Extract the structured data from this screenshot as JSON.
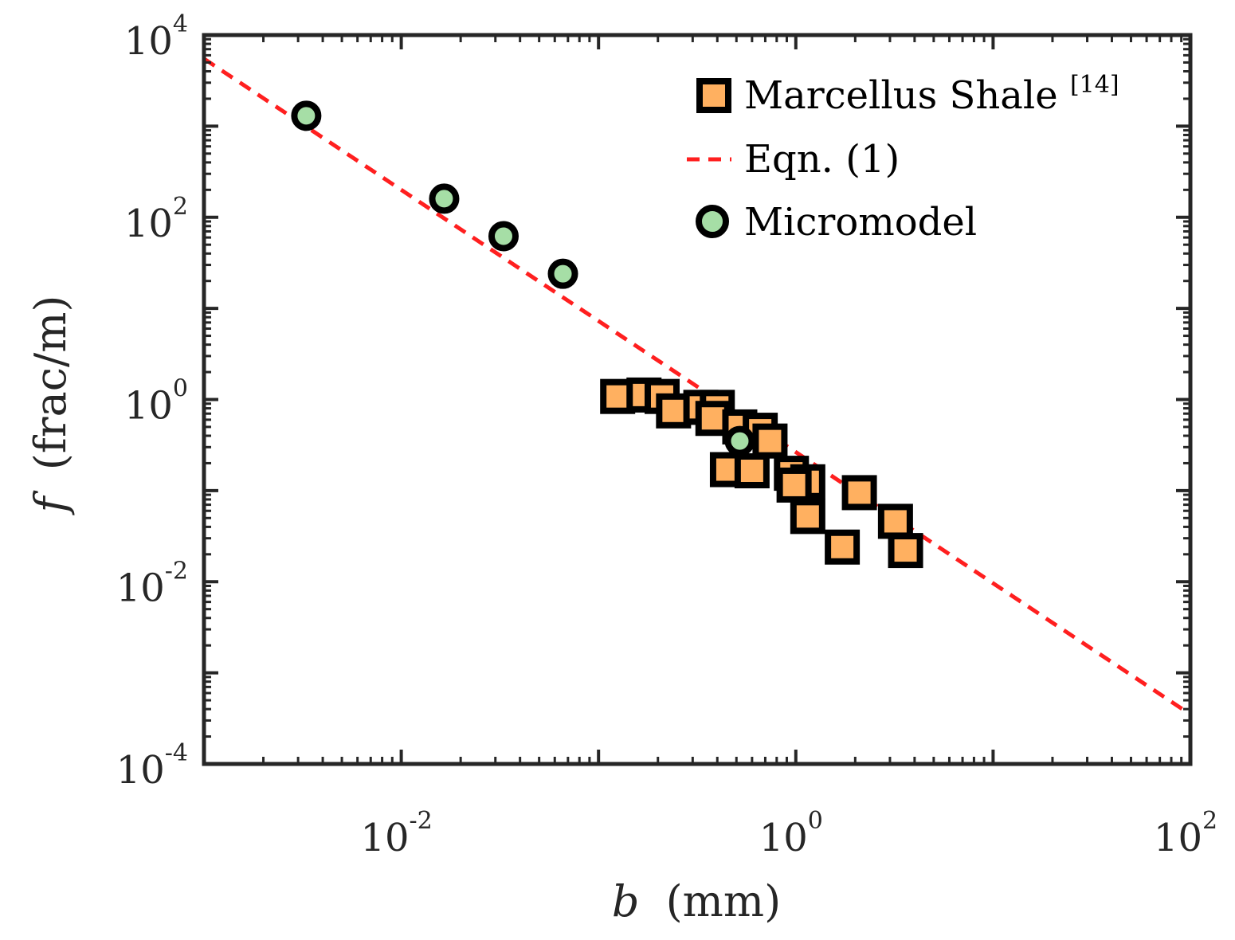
{
  "colors": {
    "frame": "#262626",
    "fit_line": "#ff1f1f",
    "marcellus_fill": "#ffb060",
    "micromodel_fill": "#a6dea6",
    "marker_edge": "#000000"
  },
  "chart_data": {
    "type": "scatter",
    "x_scale": "log",
    "y_scale": "log",
    "xlabel_var": "b",
    "xlabel_unit": "(mm)",
    "ylabel_var": "f",
    "ylabel_unit": "(frac/m)",
    "xlim": [
      0.001,
      100
    ],
    "ylim": [
      0.0001,
      10000
    ],
    "x_ticks": [
      {
        "base": "10",
        "exp": "-2",
        "value": 0.01
      },
      {
        "base": "10",
        "exp": "0",
        "value": 1
      },
      {
        "base": "10",
        "exp": "2",
        "value": 100
      }
    ],
    "y_ticks": [
      {
        "base": "10",
        "exp": "-4",
        "value": 0.0001
      },
      {
        "base": "10",
        "exp": "-2",
        "value": 0.01
      },
      {
        "base": "10",
        "exp": "0",
        "value": 1
      },
      {
        "base": "10",
        "exp": "2",
        "value": 100
      },
      {
        "base": "10",
        "exp": "4",
        "value": 10000
      }
    ],
    "legend_position": "top-right",
    "series": [
      {
        "name": "Marcellus Shale",
        "ref": "[14]",
        "kind": "square",
        "points": [
          {
            "x": 0.125,
            "y": 1.08
          },
          {
            "x": 0.17,
            "y": 1.12
          },
          {
            "x": 0.21,
            "y": 1.08
          },
          {
            "x": 0.24,
            "y": 0.75
          },
          {
            "x": 0.33,
            "y": 0.82
          },
          {
            "x": 0.4,
            "y": 0.82
          },
          {
            "x": 0.38,
            "y": 0.62
          },
          {
            "x": 0.52,
            "y": 0.5
          },
          {
            "x": 0.66,
            "y": 0.46
          },
          {
            "x": 0.74,
            "y": 0.35
          },
          {
            "x": 0.45,
            "y": 0.17
          },
          {
            "x": 0.6,
            "y": 0.165
          },
          {
            "x": 0.95,
            "y": 0.155
          },
          {
            "x": 1.15,
            "y": 0.125
          },
          {
            "x": 0.98,
            "y": 0.115
          },
          {
            "x": 2.1,
            "y": 0.095
          },
          {
            "x": 1.15,
            "y": 0.052
          },
          {
            "x": 1.72,
            "y": 0.024
          },
          {
            "x": 3.2,
            "y": 0.046
          },
          {
            "x": 3.6,
            "y": 0.022
          }
        ]
      },
      {
        "name": "Eqn. (1)",
        "kind": "line",
        "x_range": [
          0.001,
          100
        ],
        "y_range": [
          5500,
          0.00035
        ]
      },
      {
        "name": "Micromodel",
        "kind": "circle",
        "points": [
          {
            "x": 0.0033,
            "y": 1300
          },
          {
            "x": 0.0165,
            "y": 160
          },
          {
            "x": 0.033,
            "y": 62
          },
          {
            "x": 0.066,
            "y": 24
          },
          {
            "x": 0.52,
            "y": 0.35
          }
        ]
      }
    ]
  }
}
